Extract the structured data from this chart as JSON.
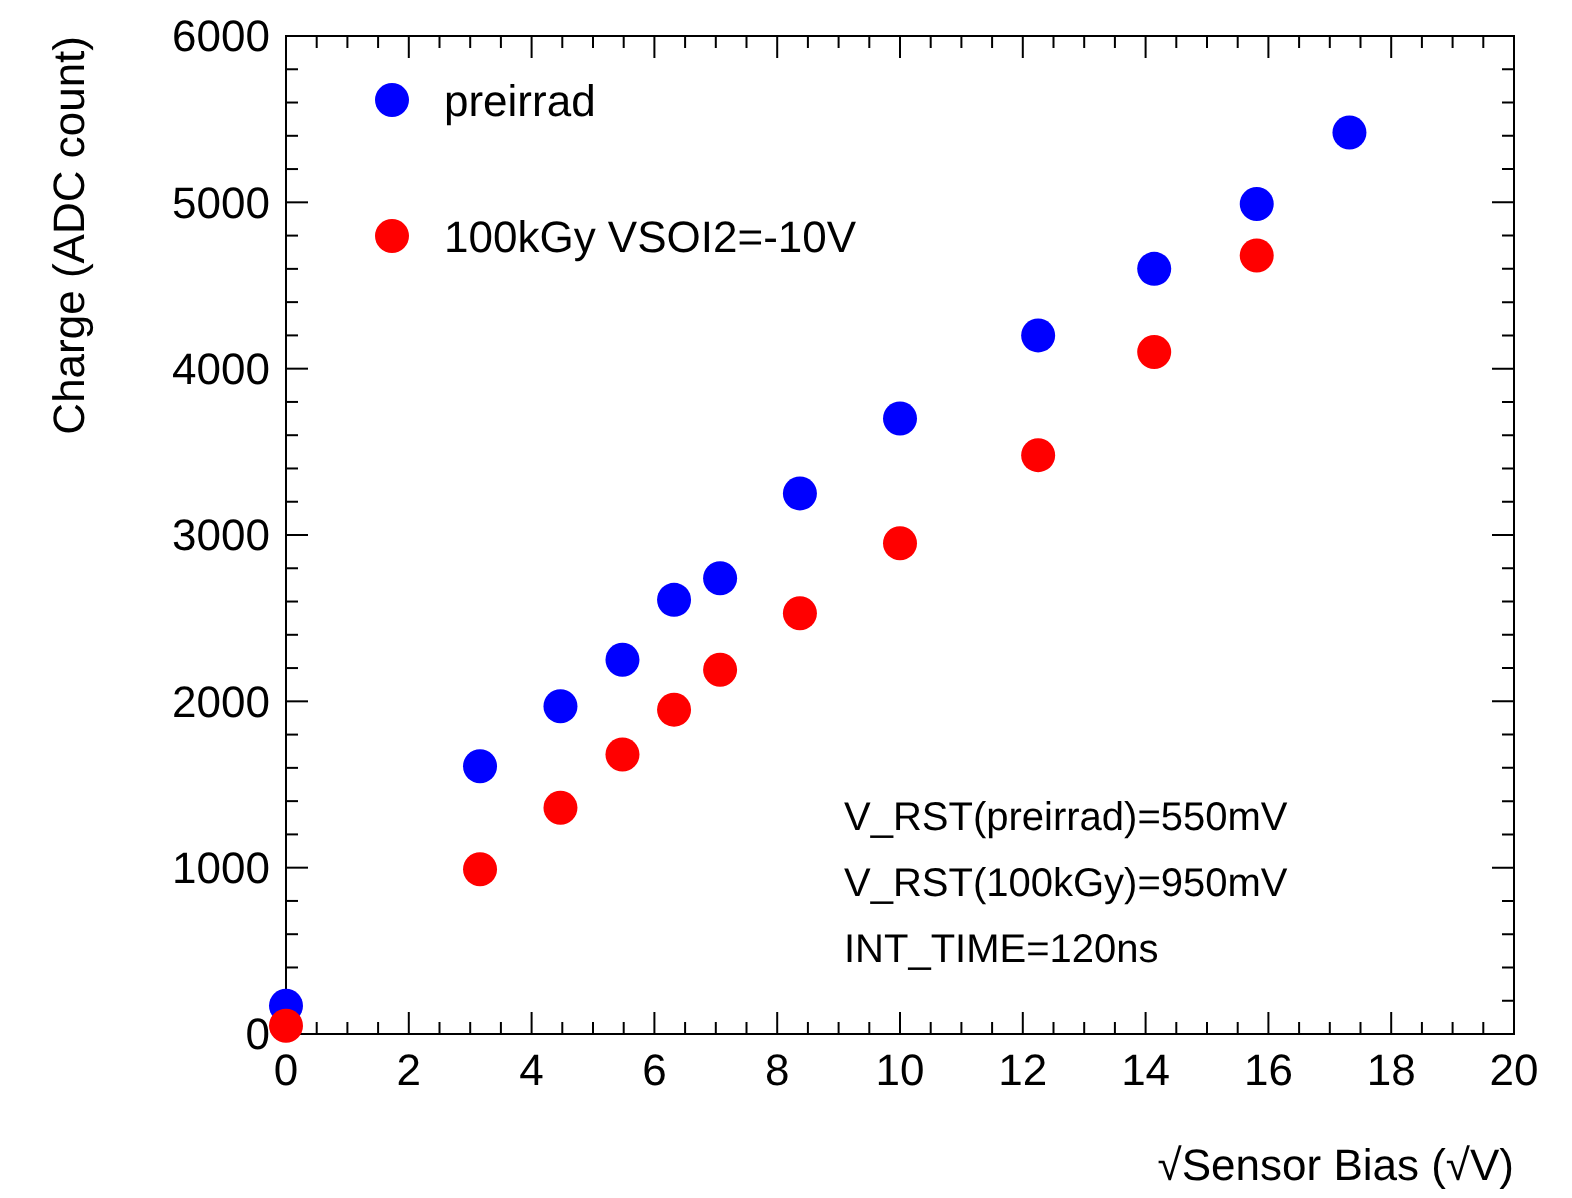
{
  "chart_data": {
    "type": "scatter",
    "xlabel": "√Sensor Bias (√V)",
    "ylabel": "Charge (ADC count)",
    "xlim": [
      0,
      20
    ],
    "xticks": [
      0,
      {
        "value": 0.5,
        "label": null
      },
      {
        "value": 1,
        "label": null
      },
      {
        "value": 1.5,
        "label": null
      },
      2,
      {
        "value": 2.5,
        "label": null
      },
      {
        "value": 3,
        "label": null
      },
      {
        "value": 3.5,
        "label": null
      },
      4,
      {
        "value": 4.5,
        "label": null
      },
      {
        "value": 5,
        "label": null
      },
      {
        "value": 5.5,
        "label": null
      },
      6,
      {
        "value": 6.5,
        "label": null
      },
      {
        "value": 7,
        "label": null
      },
      {
        "value": 7.5,
        "label": null
      },
      8,
      {
        "value": 8.5,
        "label": null
      },
      {
        "value": 9,
        "label": null
      },
      {
        "value": 9.5,
        "label": null
      },
      10,
      {
        "value": 10.5,
        "label": null
      },
      {
        "value": 11,
        "label": null
      },
      {
        "value": 11.5,
        "label": null
      },
      12,
      {
        "value": 12.5,
        "label": null
      },
      {
        "value": 13,
        "label": null
      },
      {
        "value": 13.5,
        "label": null
      },
      14,
      {
        "value": 14.5,
        "label": null
      },
      {
        "value": 15,
        "label": null
      },
      {
        "value": 15.5,
        "label": null
      },
      16,
      {
        "value": 16.5,
        "label": null
      },
      {
        "value": 17,
        "label": null
      },
      {
        "value": 17.5,
        "label": null
      },
      18,
      {
        "value": 18.5,
        "label": null
      },
      {
        "value": 19,
        "label": null
      },
      {
        "value": 19.5,
        "label": null
      },
      20
    ],
    "ylim": [
      0,
      6000
    ],
    "yticks": [
      0,
      {
        "value": 200,
        "label": null
      },
      {
        "value": 400,
        "label": null
      },
      {
        "value": 600,
        "label": null
      },
      {
        "value": 800,
        "label": null
      },
      1000,
      {
        "value": 1200,
        "label": null
      },
      {
        "value": 1400,
        "label": null
      },
      {
        "value": 1600,
        "label": null
      },
      {
        "value": 1800,
        "label": null
      },
      2000,
      {
        "value": 2200,
        "label": null
      },
      {
        "value": 2400,
        "label": null
      },
      {
        "value": 2600,
        "label": null
      },
      {
        "value": 2800,
        "label": null
      },
      3000,
      {
        "value": 3200,
        "label": null
      },
      {
        "value": 3400,
        "label": null
      },
      {
        "value": 3600,
        "label": null
      },
      {
        "value": 3800,
        "label": null
      },
      4000,
      {
        "value": 4200,
        "label": null
      },
      {
        "value": 4400,
        "label": null
      },
      {
        "value": 4600,
        "label": null
      },
      {
        "value": 4800,
        "label": null
      },
      5000,
      {
        "value": 5200,
        "label": null
      },
      {
        "value": 5400,
        "label": null
      },
      {
        "value": 5600,
        "label": null
      },
      {
        "value": 5800,
        "label": null
      },
      6000
    ],
    "grid": false,
    "legend": "top left",
    "marker": "circle",
    "series": [
      {
        "name": "preirrad",
        "color": "#0000ff",
        "x": [
          0,
          3.16,
          4.47,
          5.48,
          6.32,
          7.07,
          8.37,
          10,
          12.25,
          14.14,
          15.81,
          17.32
        ],
        "values": [
          170,
          1610,
          1970,
          2250,
          2610,
          2740,
          3250,
          3700,
          4200,
          4600,
          4990,
          5420
        ]
      },
      {
        "name": "100kGy VSOI2=-10V",
        "color": "#ff0000",
        "x": [
          0,
          3.16,
          4.47,
          5.48,
          6.32,
          7.07,
          8.37,
          10,
          12.25,
          14.14,
          15.81
        ],
        "values": [
          50,
          990,
          1360,
          1680,
          1950,
          2190,
          2530,
          2950,
          3480,
          4100,
          4680
        ]
      }
    ],
    "annotations": [
      "V_RST(preirrad)=550mV",
      "V_RST(100kGy)=950mV",
      "INT_TIME=120ns"
    ]
  }
}
